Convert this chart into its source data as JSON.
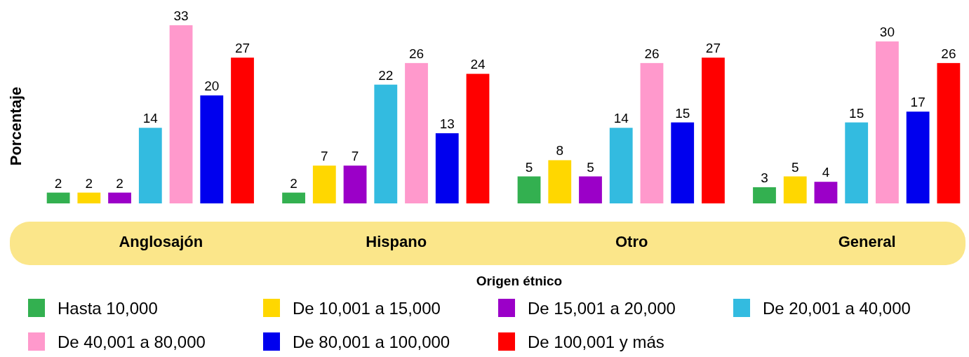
{
  "chart_data": {
    "type": "bar",
    "ylabel": "Porcentaje",
    "xlabel": "Origen étnico",
    "categories": [
      "Anglosajón",
      "Hispano",
      "Otro",
      "General"
    ],
    "data_labels": true,
    "legend": "bottom",
    "series": [
      {
        "name": "Hasta 10,000",
        "color": "#33b050",
        "values": [
          2,
          2,
          5,
          3
        ]
      },
      {
        "name": "De 10,001 a 15,000",
        "color": "#ffd700",
        "values": [
          2,
          7,
          8,
          5
        ]
      },
      {
        "name": "De 15,001 a 20,000",
        "color": "#9b00c8",
        "values": [
          2,
          7,
          5,
          4
        ]
      },
      {
        "name": "De 20,001 a 40,000",
        "color": "#33bbe0",
        "values": [
          14,
          22,
          14,
          15
        ]
      },
      {
        "name": "De 40,001 a 80,000",
        "color": "#ff99cc",
        "values": [
          33,
          26,
          26,
          30
        ]
      },
      {
        "name": "De 80,001 a 100,000",
        "color": "#0000ee",
        "values": [
          20,
          13,
          15,
          17
        ]
      },
      {
        "name": "De 100,001 y más",
        "color": "#ff0000",
        "values": [
          27,
          24,
          27,
          26
        ]
      }
    ]
  }
}
